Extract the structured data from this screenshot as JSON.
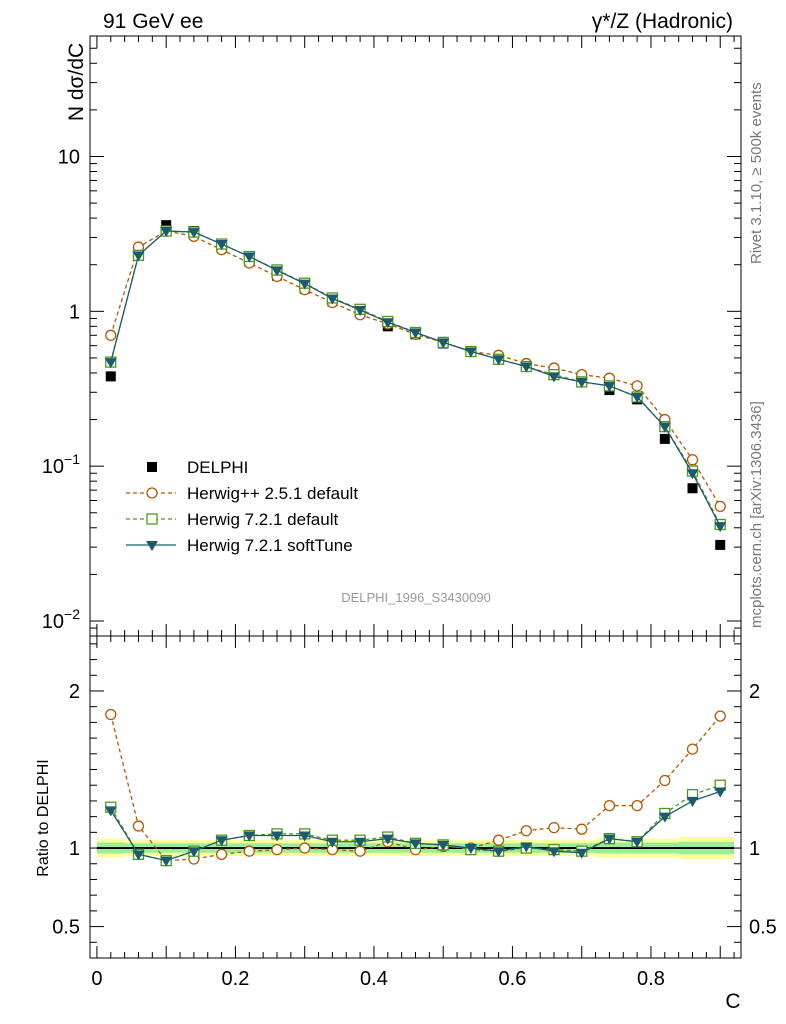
{
  "header": {
    "left": "91 GeV ee",
    "right": "γ*/Z (Hadronic)"
  },
  "side_text": {
    "rivet": "Rivet 3.1.10, ≥ 500k events",
    "mcplots": "mcplots.cern.ch [arXiv:1306.3436]"
  },
  "analysis_id": "DELPHI_1996_S3430090",
  "colors": {
    "data": "#000000",
    "herwigpp": "#b35900",
    "herwig721": "#4d9a1a",
    "softtune": "#1e5a6e",
    "band_outer": "#ffff99",
    "band_inner": "#99ee99"
  },
  "chart_data": [
    {
      "type": "scatter",
      "panel": "main",
      "ylabel": "N dσ/dC",
      "xlim": [
        -0.01,
        0.93
      ],
      "ylim": [
        0.008,
        60
      ],
      "yscale": "log",
      "yticks": [
        {
          "v": 10,
          "label": "10"
        },
        {
          "v": 1,
          "label": "1"
        },
        {
          "v": 0.1,
          "label": "10",
          "exp": "−1"
        },
        {
          "v": 0.01,
          "label": "10",
          "exp": "−2"
        }
      ],
      "legend_position": "middle-left",
      "x": [
        0.02,
        0.06,
        0.1,
        0.14,
        0.18,
        0.22,
        0.26,
        0.3,
        0.34,
        0.38,
        0.42,
        0.46,
        0.5,
        0.54,
        0.58,
        0.62,
        0.66,
        0.7,
        0.74,
        0.78,
        0.82,
        0.86,
        0.9
      ],
      "series": [
        {
          "name": "DELPHI",
          "key": "data",
          "marker": "filled-square",
          "values": [
            0.38,
            2.4,
            3.6,
            3.3,
            2.6,
            2.1,
            1.7,
            1.4,
            1.16,
            0.98,
            0.8,
            0.71,
            0.62,
            0.55,
            0.5,
            0.44,
            0.39,
            0.36,
            0.31,
            0.27,
            0.15,
            0.072,
            0.031
          ]
        },
        {
          "name": "Herwig++ 2.5.1 default",
          "key": "herwigpp",
          "marker": "open-circle",
          "values": [
            0.7,
            2.6,
            3.3,
            3.05,
            2.5,
            2.05,
            1.68,
            1.38,
            1.14,
            0.95,
            0.83,
            0.71,
            0.63,
            0.55,
            0.52,
            0.46,
            0.43,
            0.39,
            0.37,
            0.33,
            0.2,
            0.11,
            0.055
          ]
        },
        {
          "name": "Herwig 7.2.1 default",
          "key": "herwig721",
          "marker": "open-square",
          "values": [
            0.47,
            2.3,
            3.3,
            3.25,
            2.72,
            2.26,
            1.85,
            1.52,
            1.22,
            1.03,
            0.86,
            0.73,
            0.63,
            0.55,
            0.49,
            0.44,
            0.39,
            0.35,
            0.33,
            0.28,
            0.18,
            0.093,
            0.042
          ]
        },
        {
          "name": "Herwig 7.2.1 softTune",
          "key": "softtune",
          "marker": "filled-triangle-down",
          "values": [
            0.47,
            2.3,
            3.3,
            3.25,
            2.72,
            2.26,
            1.84,
            1.51,
            1.21,
            1.02,
            0.85,
            0.73,
            0.63,
            0.55,
            0.49,
            0.44,
            0.38,
            0.35,
            0.33,
            0.28,
            0.18,
            0.09,
            0.041
          ]
        }
      ]
    },
    {
      "type": "line",
      "panel": "ratio",
      "xlabel": "C",
      "ylabel": "Ratio to DELPHI",
      "xlim": [
        -0.01,
        0.93
      ],
      "ylim": [
        0.3,
        2.35
      ],
      "xticks": [
        0,
        0.2,
        0.4,
        0.6,
        0.8
      ],
      "xtick_labels": [
        "0",
        "0.2",
        "0.4",
        "0.6",
        "0.8"
      ],
      "yticks": [
        {
          "v": 2,
          "label": "2"
        },
        {
          "v": 1,
          "label": "1"
        },
        {
          "v": 0.5,
          "label": "0.5"
        }
      ],
      "band_outer": [
        0.06,
        0.05,
        0.05,
        0.05,
        0.05,
        0.05,
        0.05,
        0.05,
        0.05,
        0.05,
        0.05,
        0.05,
        0.05,
        0.05,
        0.05,
        0.05,
        0.05,
        0.05,
        0.06,
        0.06,
        0.06,
        0.07,
        0.07
      ],
      "band_inner": [
        0.035,
        0.03,
        0.03,
        0.03,
        0.03,
        0.03,
        0.03,
        0.03,
        0.03,
        0.03,
        0.03,
        0.03,
        0.03,
        0.03,
        0.03,
        0.03,
        0.03,
        0.03,
        0.035,
        0.035,
        0.035,
        0.04,
        0.04
      ],
      "series": [
        {
          "name": "Herwig++ 2.5.1 default",
          "key": "herwigpp",
          "marker": "open-circle",
          "values": [
            1.85,
            1.14,
            0.92,
            0.93,
            0.96,
            0.98,
            0.99,
            1.0,
            0.99,
            0.98,
            1.04,
            0.99,
            1.01,
            1.0,
            1.05,
            1.11,
            1.13,
            1.12,
            1.27,
            1.27,
            1.43,
            1.63,
            1.84
          ]
        },
        {
          "name": "Herwig 7.2.1 default",
          "key": "herwig721",
          "marker": "open-square",
          "values": [
            1.26,
            0.96,
            0.92,
            0.98,
            1.05,
            1.08,
            1.09,
            1.09,
            1.05,
            1.05,
            1.07,
            1.03,
            1.02,
            0.99,
            0.98,
            1.0,
            0.99,
            0.98,
            1.06,
            1.04,
            1.22,
            1.34,
            1.4
          ]
        },
        {
          "name": "Herwig 7.2.1 softTune",
          "key": "softtune",
          "marker": "filled-triangle-down",
          "values": [
            1.24,
            0.96,
            0.92,
            0.98,
            1.05,
            1.08,
            1.08,
            1.08,
            1.04,
            1.04,
            1.06,
            1.03,
            1.02,
            1.0,
            0.98,
            1.01,
            0.98,
            0.97,
            1.06,
            1.04,
            1.2,
            1.3,
            1.36
          ]
        }
      ]
    }
  ]
}
